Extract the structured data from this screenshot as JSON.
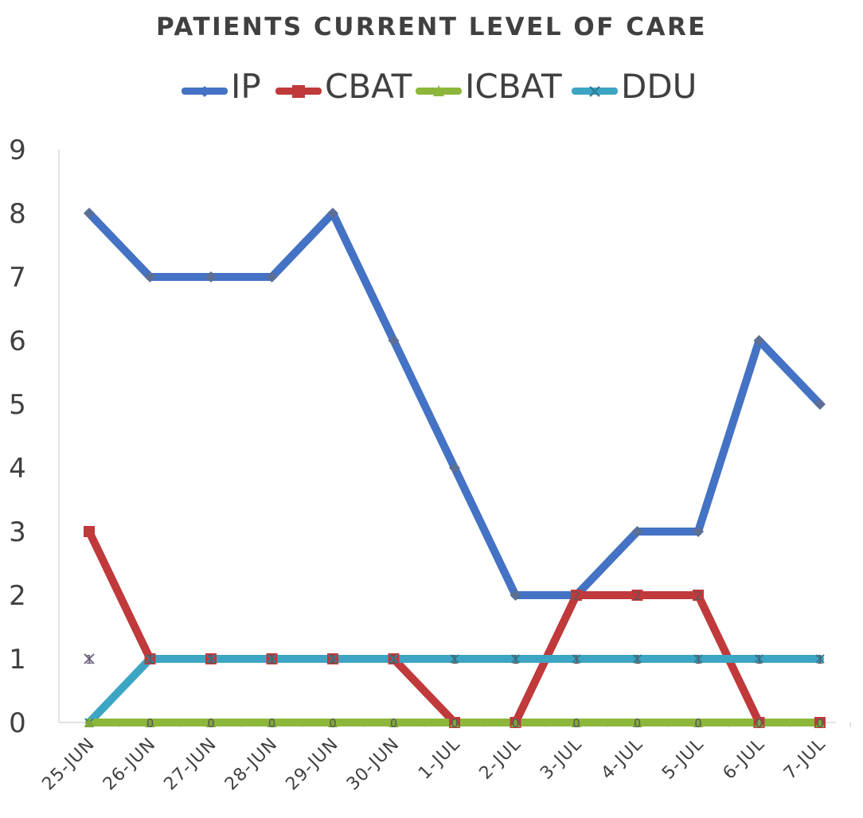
{
  "chart_data": {
    "type": "line",
    "title": "PATIENTS CURRENT LEVEL OF CARE",
    "categories": [
      "25-JUN",
      "26-JUN",
      "27-JUN",
      "28-JUN",
      "29-JUN",
      "30-JUN",
      "1-JUL",
      "2-JUL",
      "3-JUL",
      "4-JUL",
      "5-JUL",
      "6-JUL",
      "7-JUL"
    ],
    "ylim": [
      0,
      9
    ],
    "yticks": [
      "0",
      "1",
      "2",
      "3",
      "4",
      "5",
      "6",
      "7",
      "8",
      "9"
    ],
    "grid": false,
    "legend_position": "top",
    "series": [
      {
        "name": "IP",
        "color": "#4472C4",
        "marker": "diamond",
        "values": [
          8,
          7,
          7,
          7,
          8,
          6,
          4,
          2,
          2,
          3,
          3,
          6,
          5
        ]
      },
      {
        "name": "CBAT",
        "color": "#C0393B",
        "marker": "square",
        "values": [
          3,
          1,
          1,
          1,
          1,
          1,
          0,
          0,
          2,
          2,
          2,
          0,
          0
        ]
      },
      {
        "name": "ICBAT",
        "color": "#8DB73B",
        "marker": "triangle",
        "values": [
          0,
          0,
          0,
          0,
          0,
          0,
          0,
          0,
          0,
          0,
          0,
          0,
          0
        ]
      },
      {
        "name": "DDU",
        "color": "#3DA5C4",
        "marker": "x",
        "values": [
          0,
          1,
          1,
          1,
          1,
          1,
          1,
          1,
          1,
          1,
          1,
          1,
          1
        ]
      }
    ],
    "data_labels": {
      "CBAT": [
        "",
        "1",
        "1",
        "1",
        "1",
        "1",
        "0",
        "0",
        "2",
        "2",
        "2",
        "0",
        "0"
      ],
      "ICBAT": [
        "",
        "0",
        "0",
        "0",
        "0",
        "0",
        "0",
        "0",
        "0",
        "0",
        "0",
        "0",
        "0"
      ],
      "DDU": [
        "",
        "1",
        "1",
        "1",
        "1",
        "1",
        "1",
        "1",
        "1",
        "1",
        "1",
        "1",
        "1"
      ]
    },
    "annotations": [
      {
        "text": "1",
        "x": "25-JUN",
        "y": 1,
        "marker": "x",
        "color": "#7A6A9A"
      }
    ]
  }
}
